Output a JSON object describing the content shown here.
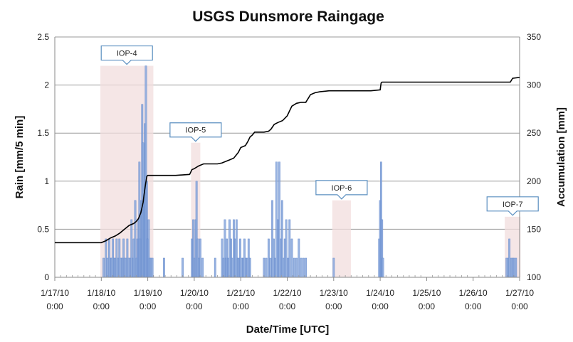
{
  "chart_data": {
    "type": "bar",
    "title": "USGS Dunsmore Raingage",
    "xlabel": "Date/Time [UTC]",
    "ylabel": "Rain [mm/5 min]",
    "y2label": "Accumulation [mm]",
    "xlim": [
      0,
      10
    ],
    "ylim": [
      0,
      2.5
    ],
    "y2lim": [
      100,
      350
    ],
    "grid": true,
    "x_ticks": [
      0,
      1,
      2,
      3,
      4,
      5,
      6,
      7,
      8,
      9,
      10
    ],
    "x_tick_labels": [
      [
        "1/17/10",
        "0:00"
      ],
      [
        "1/18/10",
        "0:00"
      ],
      [
        "1/19/10",
        "0:00"
      ],
      [
        "1/20/10",
        "0:00"
      ],
      [
        "1/21/10",
        "0:00"
      ],
      [
        "1/22/10",
        "0:00"
      ],
      [
        "1/23/10",
        "0:00"
      ],
      [
        "1/24/10",
        "0:00"
      ],
      [
        "1/25/10",
        "0:00"
      ],
      [
        "1/26/10",
        "0:00"
      ],
      [
        "1/27/10",
        "0:00"
      ]
    ],
    "y_ticks": [
      "0",
      "0.5",
      "1",
      "1.5",
      "2",
      "2.5"
    ],
    "y2_ticks": [
      "100",
      "150",
      "200",
      "250",
      "300",
      "350"
    ],
    "iop_periods": [
      {
        "label": "IOP-4",
        "start": 0.98,
        "end": 2.12,
        "height": 2.2
      },
      {
        "label": "IOP-5",
        "start": 2.93,
        "end": 3.13,
        "height": 1.4
      },
      {
        "label": "IOP-6",
        "start": 5.97,
        "end": 6.37,
        "height": 0.8
      },
      {
        "label": "IOP-7",
        "start": 9.68,
        "end": 10.02,
        "height": 0.63
      }
    ],
    "series": [
      {
        "name": "Rain",
        "x": [
          1.05,
          1.1,
          1.13,
          1.17,
          1.2,
          1.22,
          1.25,
          1.28,
          1.3,
          1.33,
          1.36,
          1.39,
          1.42,
          1.45,
          1.48,
          1.5,
          1.53,
          1.56,
          1.59,
          1.62,
          1.65,
          1.68,
          1.7,
          1.73,
          1.76,
          1.78,
          1.8,
          1.82,
          1.84,
          1.86,
          1.88,
          1.9,
          1.92,
          1.94,
          1.96,
          1.98,
          2.0,
          2.02,
          2.04,
          2.07,
          2.1,
          2.35,
          2.75,
          2.95,
          2.98,
          3.0,
          3.03,
          3.05,
          3.08,
          3.1,
          3.13,
          3.18,
          3.45,
          3.6,
          3.63,
          3.66,
          3.68,
          3.7,
          3.73,
          3.76,
          3.79,
          3.82,
          3.85,
          3.88,
          3.91,
          3.94,
          3.96,
          3.99,
          4.02,
          4.05,
          4.08,
          4.11,
          4.14,
          4.17,
          4.2,
          4.5,
          4.55,
          4.6,
          4.64,
          4.68,
          4.71,
          4.74,
          4.77,
          4.8,
          4.83,
          4.86,
          4.89,
          4.92,
          4.95,
          4.98,
          5.02,
          5.05,
          5.1,
          5.15,
          5.2,
          5.25,
          5.3,
          5.35,
          5.4,
          6.0,
          6.98,
          7.0,
          7.02,
          7.04,
          7.06,
          9.72,
          9.75,
          9.78,
          9.82,
          9.85,
          9.88,
          9.92
        ],
        "values": [
          0.2,
          0.4,
          0.2,
          0.4,
          0.2,
          0.2,
          0.4,
          0.2,
          0.2,
          0.4,
          0.2,
          0.4,
          0.2,
          0.2,
          0.4,
          0.2,
          0.2,
          0.4,
          0.2,
          0.2,
          0.6,
          0.2,
          0.4,
          0.8,
          0.2,
          0.4,
          0.6,
          1.2,
          0.4,
          0.8,
          1.8,
          1.4,
          0.8,
          1.6,
          2.2,
          1.0,
          0.4,
          0.6,
          0.2,
          0.2,
          0.2,
          0.2,
          0.2,
          0.4,
          0.6,
          0.2,
          0.6,
          1.0,
          0.4,
          0.2,
          0.4,
          0.2,
          0.2,
          0.4,
          0.2,
          0.6,
          0.2,
          0.4,
          0.2,
          0.6,
          0.4,
          0.2,
          0.6,
          0.4,
          0.6,
          0.2,
          0.2,
          0.4,
          0.2,
          0.2,
          0.4,
          0.2,
          0.2,
          0.4,
          0.2,
          0.2,
          0.2,
          0.4,
          0.2,
          0.8,
          0.4,
          0.2,
          1.2,
          0.6,
          1.2,
          0.4,
          0.8,
          0.2,
          0.4,
          0.6,
          0.2,
          0.6,
          0.4,
          0.2,
          0.2,
          0.4,
          0.2,
          0.2,
          0.2,
          0.2,
          0.4,
          0.8,
          1.2,
          0.6,
          0.2,
          0.2,
          0.2,
          0.4,
          0.2,
          0.2,
          0.2,
          0.2
        ]
      },
      {
        "name": "Accumulation",
        "axis": "y2",
        "x": [
          0,
          1.0,
          1.1,
          1.2,
          1.3,
          1.4,
          1.5,
          1.6,
          1.7,
          1.75,
          1.8,
          1.85,
          1.9,
          1.92,
          1.95,
          1.98,
          2.0,
          2.3,
          2.6,
          2.9,
          2.95,
          3.0,
          3.1,
          3.2,
          3.5,
          3.6,
          3.65,
          3.75,
          3.85,
          3.9,
          3.95,
          4.0,
          4.05,
          4.1,
          4.15,
          4.2,
          4.25,
          4.3,
          4.5,
          4.6,
          4.65,
          4.72,
          4.8,
          4.9,
          5.0,
          5.1,
          5.2,
          5.3,
          5.4,
          5.5,
          5.6,
          5.7,
          5.9,
          6.0,
          6.8,
          7.0,
          7.02,
          7.04,
          8.0,
          9.0,
          9.7,
          9.8,
          9.85,
          10.0
        ],
        "values": [
          136,
          136,
          138,
          141,
          143,
          146,
          150,
          154,
          156,
          158,
          161,
          167,
          178,
          186,
          196,
          205,
          206,
          206,
          206,
          207,
          212,
          213,
          216,
          218,
          218,
          219,
          220,
          222,
          224,
          227,
          230,
          235,
          236,
          237,
          241,
          246,
          248,
          251,
          251,
          252,
          254,
          259,
          261,
          263,
          268,
          278,
          281,
          282,
          282,
          290,
          292,
          293,
          294,
          294,
          294,
          295,
          302,
          303,
          303,
          303,
          303,
          303,
          307,
          308
        ]
      }
    ]
  }
}
